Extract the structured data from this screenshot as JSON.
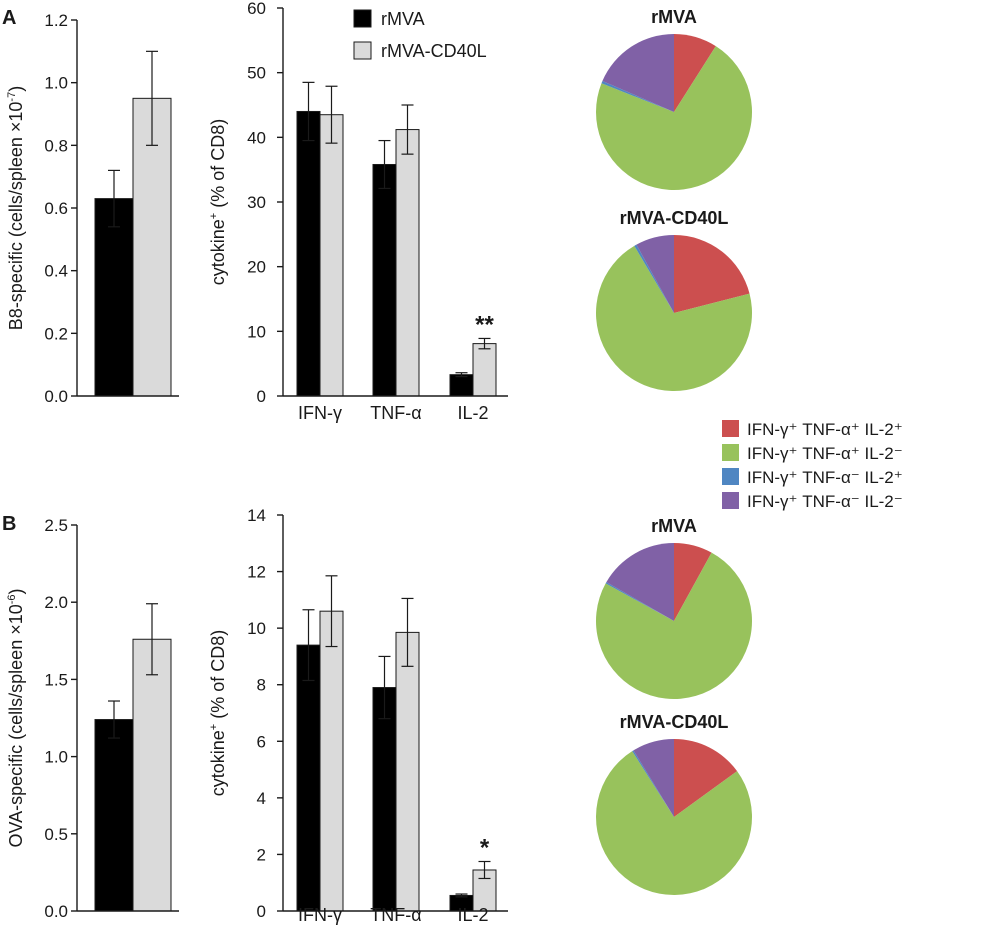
{
  "colors": {
    "rMVA": "#000000",
    "rMVA-CD40L": "#dadada",
    "pie": [
      "#cc4f4f",
      "#98c25c",
      "#4f86c2",
      "#8061a6"
    ]
  },
  "legend_bars": [
    "rMVA",
    "rMVA-CD40L"
  ],
  "legend_pie": [
    {
      "label": "IFN-γ⁺ TNF-α⁺ IL-2⁺",
      "color": "#cc4f4f"
    },
    {
      "label": "IFN-γ⁺ TNF-α⁺ IL-2⁻",
      "color": "#98c25c"
    },
    {
      "label": "IFN-γ⁺ TNF-α⁻ IL-2⁺",
      "color": "#4f86c2"
    },
    {
      "label": "IFN-γ⁺ TNF-α⁻ IL-2⁻",
      "color": "#8061a6"
    }
  ],
  "chart_data": [
    {
      "id": "A-count",
      "panel": "A",
      "type": "bar",
      "ylabel_main": "B8-specific (cells/spleen ×10",
      "ylabel_exp": "-7",
      "ylabel_tail": ")",
      "ylim": [
        0,
        1.2
      ],
      "yticks": [
        "0.0",
        "0.2",
        "0.4",
        "0.6",
        "0.8",
        "1.0",
        "1.2"
      ],
      "series": [
        {
          "name": "rMVA",
          "values": [
            0.63
          ],
          "errors": [
            0.09
          ]
        },
        {
          "name": "rMVA-CD40L",
          "values": [
            0.95
          ],
          "errors": [
            0.15
          ]
        }
      ]
    },
    {
      "id": "A-cytokine",
      "panel": "A",
      "type": "bar",
      "ylabel_main": "cytokine",
      "ylabel_sup": "+",
      "ylabel_tail": " (% of CD8)",
      "ylim": [
        0,
        60
      ],
      "yticks": [
        "0",
        "10",
        "20",
        "30",
        "40",
        "50",
        "60"
      ],
      "categories": [
        "IFN-γ",
        "TNF-α",
        "IL-2"
      ],
      "series": [
        {
          "name": "rMVA",
          "values": [
            44.0,
            35.8,
            3.3
          ],
          "errors": [
            4.5,
            3.7,
            0.3
          ]
        },
        {
          "name": "rMVA-CD40L",
          "values": [
            43.5,
            41.2,
            8.1
          ],
          "errors": [
            4.4,
            3.8,
            0.8
          ]
        }
      ],
      "annotations": [
        {
          "category": "IL-2",
          "text": "**"
        }
      ]
    },
    {
      "id": "B-count",
      "panel": "B",
      "type": "bar",
      "ylabel_main": "OVA-specific (cells/spleen ×10",
      "ylabel_exp": "-6",
      "ylabel_tail": ")",
      "ylim": [
        0,
        2.5
      ],
      "yticks": [
        "0.0",
        "0.5",
        "1.0",
        "1.5",
        "2.0",
        "2.5"
      ],
      "series": [
        {
          "name": "rMVA",
          "values": [
            1.24
          ],
          "errors": [
            0.12
          ]
        },
        {
          "name": "rMVA-CD40L",
          "values": [
            1.76
          ],
          "errors": [
            0.23
          ]
        }
      ]
    },
    {
      "id": "B-cytokine",
      "panel": "B",
      "type": "bar",
      "ylabel_main": "cytokine",
      "ylabel_sup": "+",
      "ylabel_tail": " (% of CD8)",
      "ylim": [
        0,
        14
      ],
      "yticks": [
        "0",
        "2",
        "4",
        "6",
        "8",
        "10",
        "12",
        "14"
      ],
      "categories": [
        "IFN-γ",
        "TNF-α",
        "IL-2"
      ],
      "series": [
        {
          "name": "rMVA",
          "values": [
            9.4,
            7.9,
            0.55
          ],
          "errors": [
            1.25,
            1.1,
            0.05
          ]
        },
        {
          "name": "rMVA-CD40L",
          "values": [
            10.6,
            9.85,
            1.45
          ],
          "errors": [
            1.25,
            1.2,
            0.3
          ]
        }
      ],
      "annotations": [
        {
          "category": "IL-2",
          "text": "*"
        }
      ]
    },
    {
      "id": "A-pie-rMVA",
      "panel": "A",
      "type": "pie",
      "title": "rMVA",
      "labels": [
        "IFN-γ⁺ TNF-α⁺ IL-2⁺",
        "IFN-γ⁺ TNF-α⁺ IL-2⁻",
        "IFN-γ⁺ TNF-α⁻ IL-2⁺",
        "IFN-γ⁺ TNF-α⁻ IL-2⁻"
      ],
      "values": [
        9,
        72,
        0.5,
        18.5
      ]
    },
    {
      "id": "A-pie-CD40L",
      "panel": "A",
      "type": "pie",
      "title": "rMVA-CD40L",
      "labels": [
        "IFN-γ⁺ TNF-α⁺ IL-2⁺",
        "IFN-γ⁺ TNF-α⁺ IL-2⁻",
        "IFN-γ⁺ TNF-α⁻ IL-2⁺",
        "IFN-γ⁺ TNF-α⁻ IL-2⁻"
      ],
      "values": [
        21,
        70.5,
        0.5,
        8
      ]
    },
    {
      "id": "B-pie-rMVA",
      "panel": "B",
      "type": "pie",
      "title": "rMVA",
      "labels": [
        "IFN-γ⁺ TNF-α⁺ IL-2⁺",
        "IFN-γ⁺ TNF-α⁺ IL-2⁻",
        "IFN-γ⁺ TNF-α⁻ IL-2⁺",
        "IFN-γ⁺ TNF-α⁻ IL-2⁻"
      ],
      "values": [
        8,
        75,
        0.3,
        16.7
      ]
    },
    {
      "id": "B-pie-CD40L",
      "panel": "B",
      "type": "pie",
      "title": "rMVA-CD40L",
      "labels": [
        "IFN-γ⁺ TNF-α⁺ IL-2⁺",
        "IFN-γ⁺ TNF-α⁺ IL-2⁻",
        "IFN-γ⁺ TNF-α⁻ IL-2⁺",
        "IFN-γ⁺ TNF-α⁻ IL-2⁻"
      ],
      "values": [
        15,
        76,
        0.3,
        8.7
      ]
    }
  ]
}
